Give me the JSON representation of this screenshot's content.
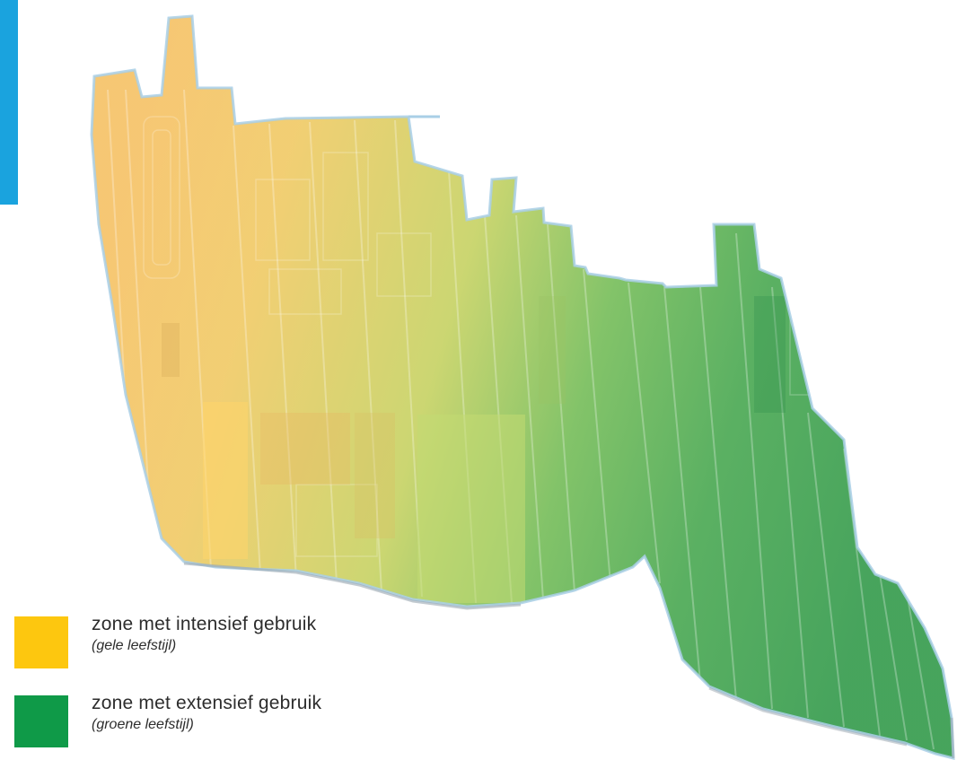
{
  "colors": {
    "accent": "#1aa3de",
    "intensive": "#fdc70f",
    "extensive": "#0f9a48",
    "map_yellow": "#f5c86a",
    "map_green": "#3ea35a",
    "outline": "#a9cfe6"
  },
  "legend": {
    "items": [
      {
        "label": "zone met intensief gebruik",
        "sublabel": "(gele leefstijl)",
        "color": "#fdc70f"
      },
      {
        "label": "zone met extensief gebruik",
        "sublabel": "(groene leefstijl)",
        "color": "#0f9a48"
      }
    ]
  }
}
